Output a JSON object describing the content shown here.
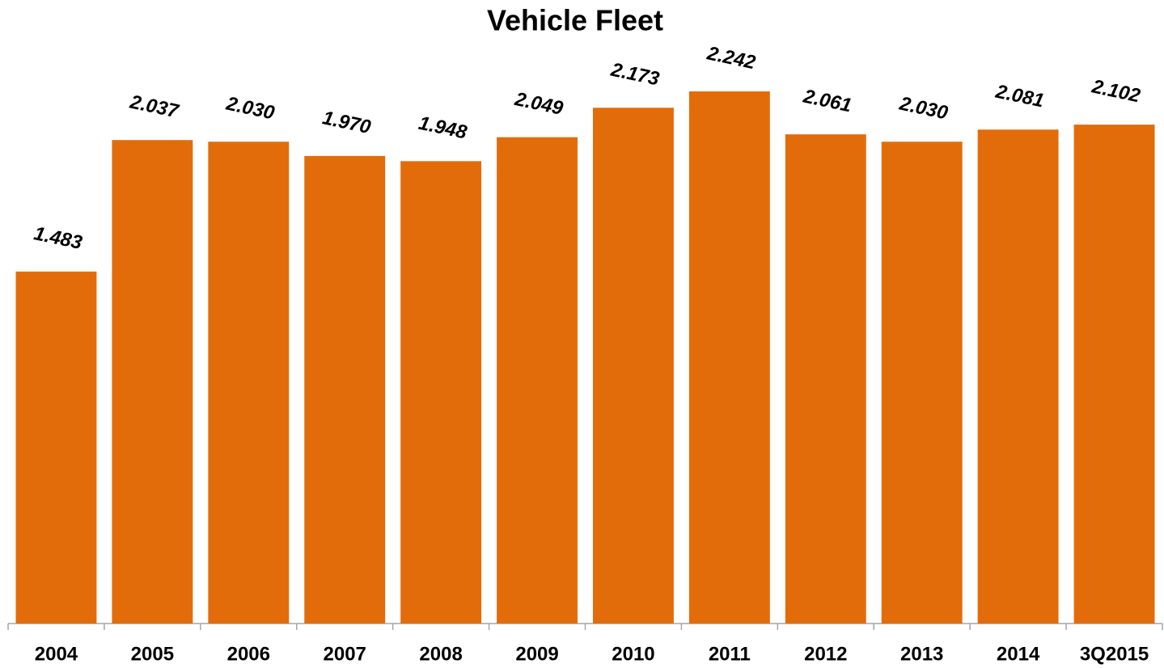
{
  "chart_data": {
    "type": "bar",
    "title": "Vehicle Fleet",
    "categories": [
      "2004",
      "2005",
      "2006",
      "2007",
      "2008",
      "2009",
      "2010",
      "2011",
      "2012",
      "2013",
      "2014",
      "3Q2015"
    ],
    "values": [
      1.483,
      2.037,
      2.03,
      1.97,
      1.948,
      2.049,
      2.173,
      2.242,
      2.061,
      2.03,
      2.081,
      2.102
    ],
    "value_labels": [
      "1.483",
      "2.037",
      "2.030",
      "1.970",
      "1.948",
      "2.049",
      "2.173",
      "2.242",
      "2.061",
      "2.030",
      "2.081",
      "2.102"
    ],
    "color": "#e36c0a"
  }
}
